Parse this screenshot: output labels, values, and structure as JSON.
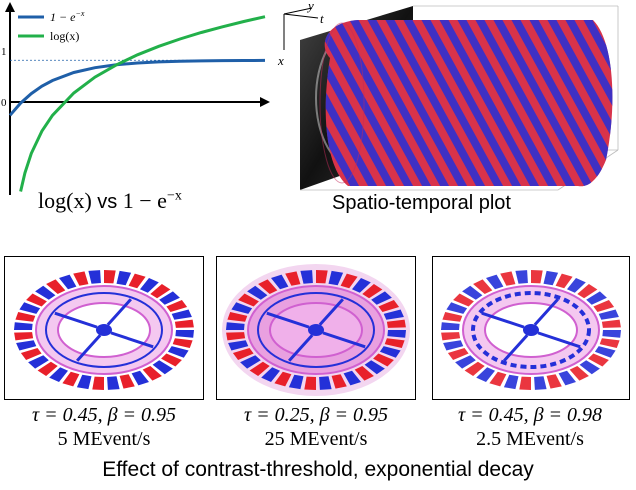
{
  "top_left_chart": {
    "caption_math": "log(x)",
    "caption_vs": "vs",
    "caption_rhs": "1 − e",
    "caption_exp": "−x",
    "legend": [
      {
        "label_base": "1 − e",
        "label_exp": "−x",
        "color": "#1f5fa8"
      },
      {
        "label_base": "log(x)",
        "label_exp": "",
        "color": "#22b04a"
      }
    ],
    "ytick_1": "1",
    "ytick_0": "0"
  },
  "chart_data": {
    "type": "line",
    "series": [
      {
        "name": "1 − e^{−x}",
        "color": "#1f5fa8",
        "x": [
          0,
          0.25,
          0.5,
          0.75,
          1,
          1.5,
          2,
          2.5,
          3,
          3.5,
          4,
          4.5,
          5,
          5.5,
          6
        ],
        "y": [
          0,
          0.221,
          0.393,
          0.528,
          0.632,
          0.777,
          0.865,
          0.918,
          0.95,
          0.97,
          0.982,
          0.989,
          0.993,
          0.996,
          0.998
        ]
      },
      {
        "name": "log(x)",
        "color": "#22b04a",
        "x": [
          0.25,
          0.35,
          0.5,
          0.75,
          1,
          1.5,
          2,
          2.5,
          3,
          3.5,
          4,
          4.5,
          5,
          5.5,
          6
        ],
        "y": [
          -1.386,
          -1.05,
          -0.693,
          -0.288,
          0,
          0.405,
          0.693,
          0.916,
          1.099,
          1.253,
          1.386,
          1.504,
          1.609,
          1.705,
          1.792
        ]
      }
    ],
    "reference_line_y": 1,
    "xlim": [
      0,
      6
    ],
    "ylim": [
      -1.45,
      1.95
    ],
    "grid": false
  },
  "spatio_temporal": {
    "caption": "Spatio-temporal plot",
    "axis_y": "y",
    "axis_t": "t",
    "axis_x": "x",
    "colors": {
      "positive": "#e8202a",
      "negative": "#2430d8"
    }
  },
  "panels": [
    {
      "param_line": "τ = 0.45, β = 0.95",
      "rate_line": "5 MEvent/s"
    },
    {
      "param_line": "τ = 0.25, β = 0.95",
      "rate_line": "25 MEvent/s"
    },
    {
      "param_line": "τ = 0.45, β = 0.98",
      "rate_line": "2.5 MEvent/s"
    }
  ],
  "bottom_caption": "Effect of contrast-threshold, exponential decay"
}
